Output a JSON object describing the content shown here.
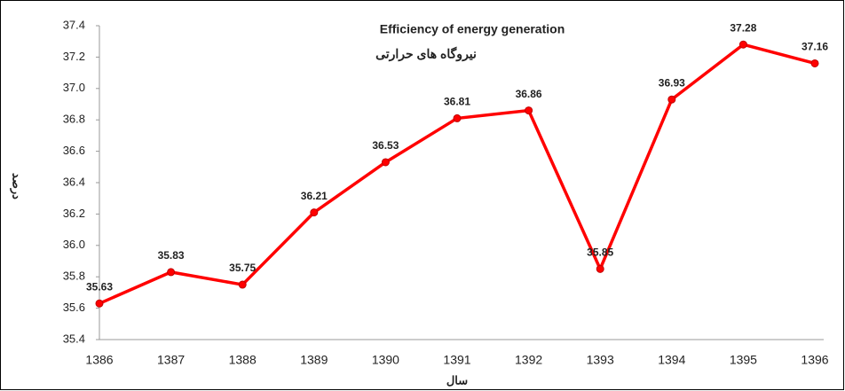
{
  "chart_data": {
    "type": "line",
    "title": "Efficiency of energy generation",
    "subtitle": "نیروگاه های حرارتی",
    "y_label": "درصد",
    "x_label": "سال",
    "categories": [
      "1386",
      "1387",
      "1388",
      "1389",
      "1390",
      "1391",
      "1392",
      "1393",
      "1394",
      "1395",
      "1396"
    ],
    "values": [
      35.63,
      35.83,
      35.75,
      36.21,
      36.53,
      36.81,
      36.86,
      35.85,
      36.93,
      37.28,
      37.16
    ],
    "color": "#ff0000",
    "ylim": [
      35.4,
      37.4
    ],
    "yticks": [
      35.4,
      35.6,
      35.8,
      {
        "value": 36,
        "label": "36.0"
      },
      36.2,
      36.4,
      36.6,
      36.8,
      {
        "value": 37,
        "label": "37.0"
      },
      37.2,
      37.4
    ]
  }
}
